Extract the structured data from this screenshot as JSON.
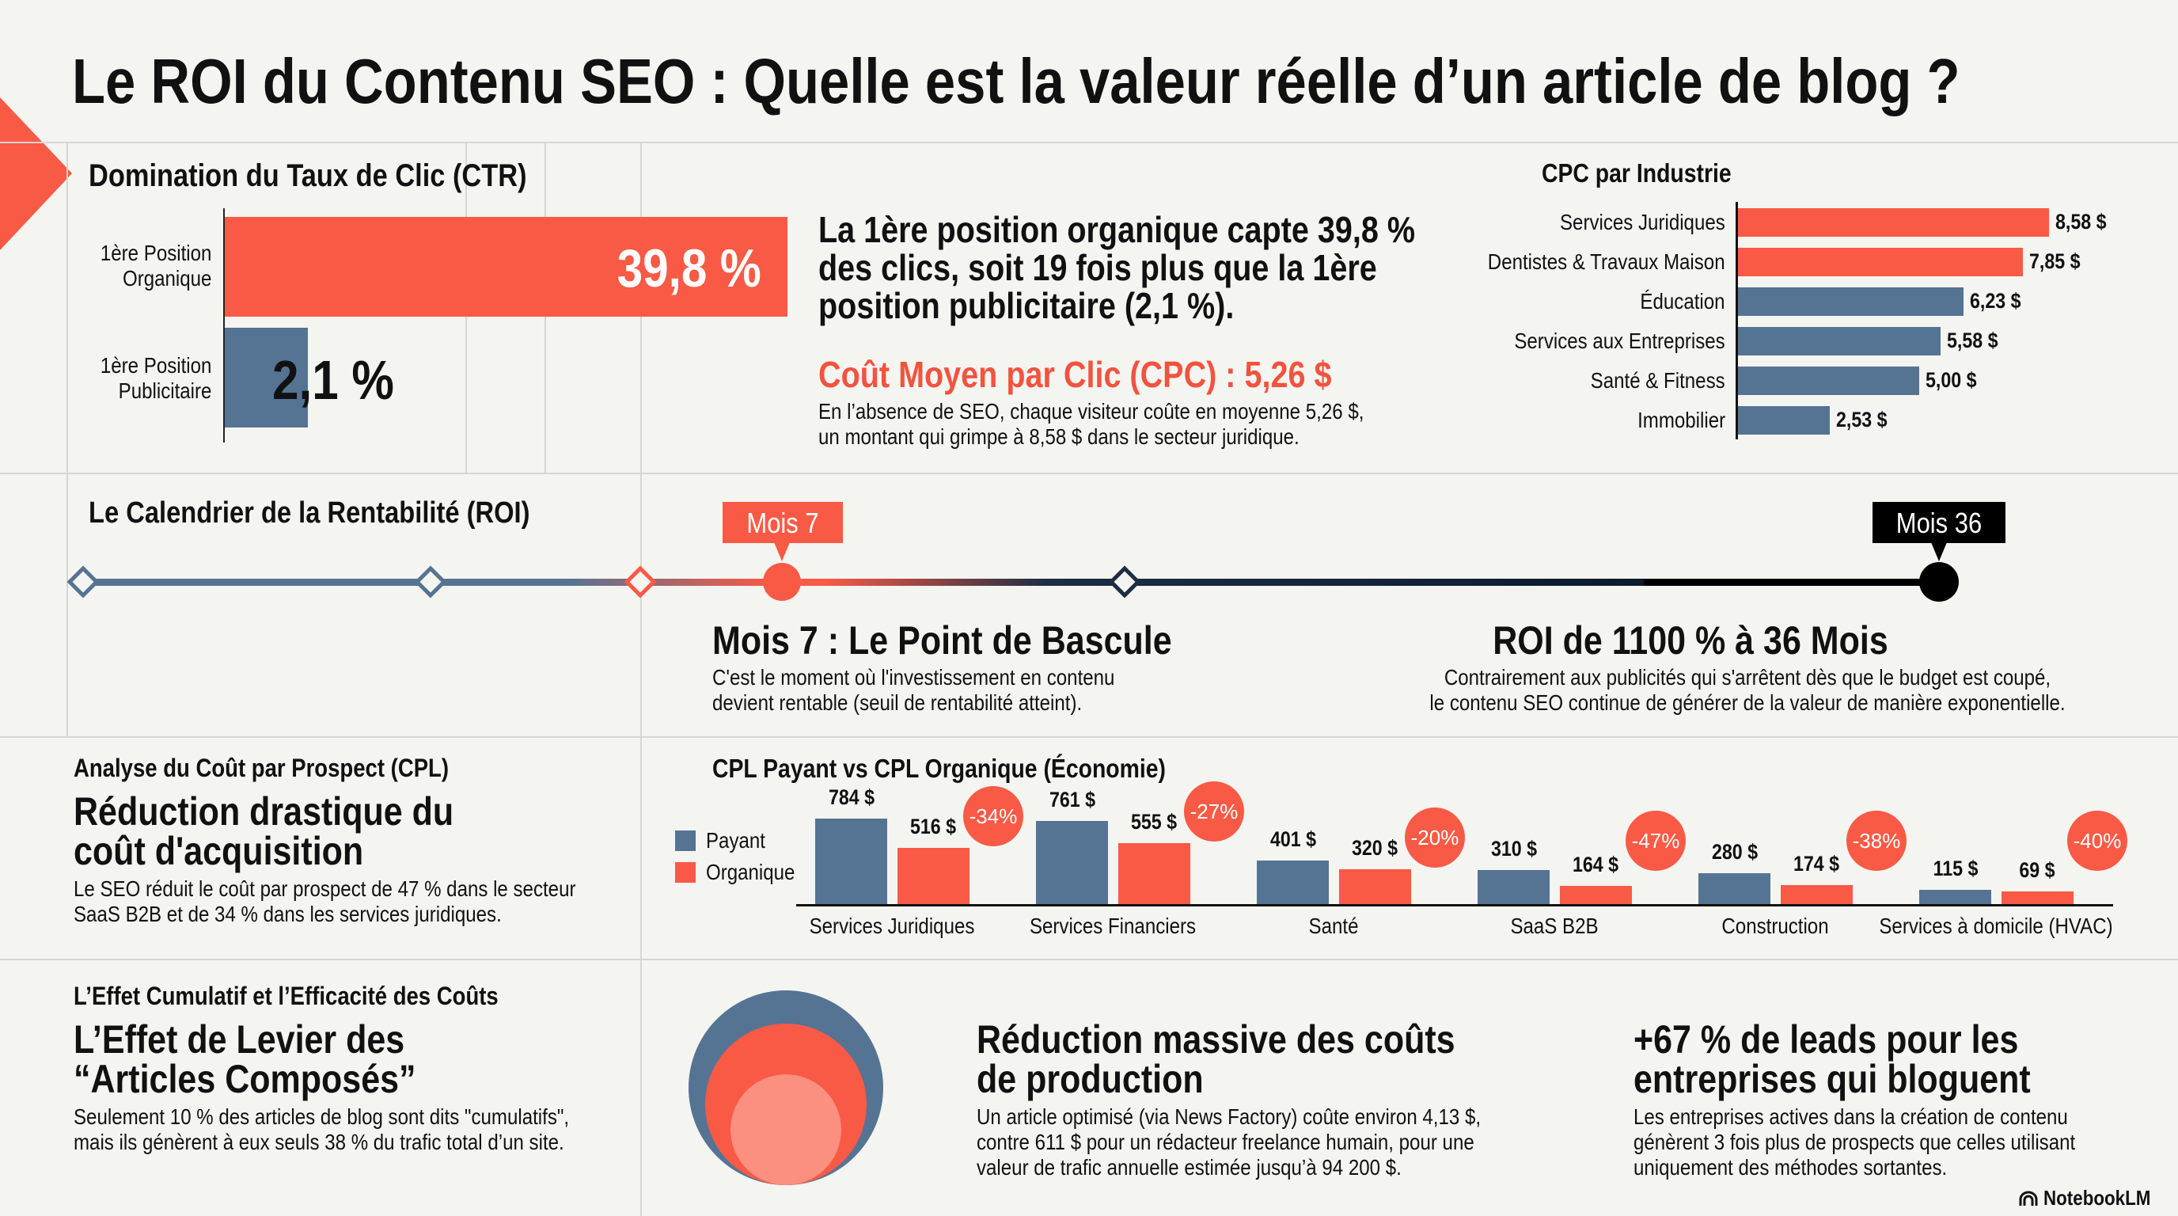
{
  "title": "Le ROI du Contenu SEO : Quelle est la valeur réelle d’un article de blog ?",
  "colors": {
    "accent": "#f85a45",
    "blue": "#557494",
    "navy": "#1c2d44",
    "background": "#f4f4f0",
    "text": "#111111"
  },
  "ctr": {
    "heading": "Domination du Taux de Clic (CTR)",
    "organic_label": [
      "1ère Position",
      "Organique"
    ],
    "paid_label": [
      "1ère Position",
      "Publicitaire"
    ],
    "organic_value": "39,8 %",
    "paid_value": "2,1 %",
    "statement": [
      "La 1ère position organique capte 39,8 %",
      "des clics, soit 19 fois plus que la 1ère",
      "position publicitaire (2,1 %)."
    ],
    "cpc_heading": "Coût Moyen par Clic (CPC) : 5,26 $",
    "cpc_text": [
      "En l’absence de SEO, chaque visiteur coûte en moyenne 5,26 $,",
      "un montant qui grimpe à 8,58 $ dans le secteur juridique."
    ]
  },
  "timeline": {
    "heading": "Le Calendrier de la Rentabilité (ROI)",
    "marker_7": "Mois 7",
    "marker_36": "Mois 36",
    "point1_title": "Mois 7 : Le Point de Bascule",
    "point1_text": [
      "C'est le moment où l'investissement en contenu",
      "devient rentable (seuil de rentabilité atteint)."
    ],
    "point2_title": "ROI de 1100 % à 36 Mois",
    "point2_text": [
      "Contrairement aux publicités qui s'arrêtent dès que le budget est coupé,",
      "le contenu SEO continue de générer de la valeur de manière exponentielle."
    ]
  },
  "cpl": {
    "kicker": "Analyse du Coût par Prospect (CPL)",
    "headline": [
      "Réduction drastique du",
      "coût d'acquisition"
    ],
    "text": [
      "Le SEO réduit le coût par prospect de 47 % dans le secteur",
      "SaaS B2B et de 34 % dans les services juridiques."
    ]
  },
  "bottom": {
    "kicker": "L’Effet Cumulatif et l’Efficacité des Coûts",
    "headline": [
      "L’Effet de Levier des",
      "“Articles Composés”"
    ],
    "text": [
      "Seulement 10 % des articles de blog sont dits \"cumulatifs\",",
      "mais ils génèrent à eux seuls 38 % du trafic total d’un site."
    ],
    "col2_title": [
      "Réduction massive des coûts",
      "de production"
    ],
    "col2_text": [
      "Un article optimisé (via News Factory) coûte environ 4,13 $,",
      "contre 611 $ pour un rédacteur freelance humain, pour une",
      "valeur de trafic annuelle estimée jusqu’à 94 200 $."
    ],
    "col3_title": [
      "+67 % de leads pour les",
      "entreprises qui bloguent"
    ],
    "col3_text": [
      "Les entreprises actives dans la création de contenu",
      "génèrent 3 fois plus de prospects que celles utilisant",
      "uniquement des méthodes sortantes."
    ]
  },
  "brand": "NotebookLM",
  "chart_data": [
    {
      "type": "bar",
      "orientation": "horizontal",
      "title": "CPC par Industrie",
      "categories": [
        "Services Juridiques",
        "Dentistes & Travaux Maison",
        "Éducation",
        "Services aux Entreprises",
        "Santé & Fitness",
        "Immobilier"
      ],
      "values": [
        8.58,
        7.85,
        6.23,
        5.58,
        5.0,
        2.53
      ],
      "value_labels": [
        "8,58 $",
        "7,85 $",
        "6,23 $",
        "5,58 $",
        "5,00 $",
        "2,53 $"
      ],
      "highlight": [
        true,
        true,
        false,
        false,
        false,
        false
      ]
    },
    {
      "type": "bar",
      "title": "CPL Payant vs CPL Organique (Économie)",
      "categories": [
        "Services Juridiques",
        "Services Financiers",
        "Santé",
        "SaaS B2B",
        "Construction",
        "Services à domicile (HVAC)"
      ],
      "legend": "left",
      "series": [
        {
          "name": "Payant",
          "values": [
            784,
            761,
            401,
            310,
            280,
            115
          ],
          "labels": [
            "784 $",
            "761 $",
            "401 $",
            "310 $",
            "280 $",
            "115 $"
          ]
        },
        {
          "name": "Organique",
          "values": [
            516,
            555,
            320,
            164,
            174,
            69
          ],
          "labels": [
            "516 $",
            "555 $",
            "320 $",
            "164 $",
            "174 $",
            "69 $"
          ]
        }
      ],
      "savings": [
        "-34%",
        "-27%",
        "-20%",
        "-47%",
        "-38%",
        "-40%"
      ]
    },
    {
      "type": "bar",
      "title": "Domination du Taux de Clic (CTR)",
      "categories": [
        "1ère Position Organique",
        "1ère Position Publicitaire"
      ],
      "values": [
        39.8,
        2.1
      ]
    }
  ]
}
